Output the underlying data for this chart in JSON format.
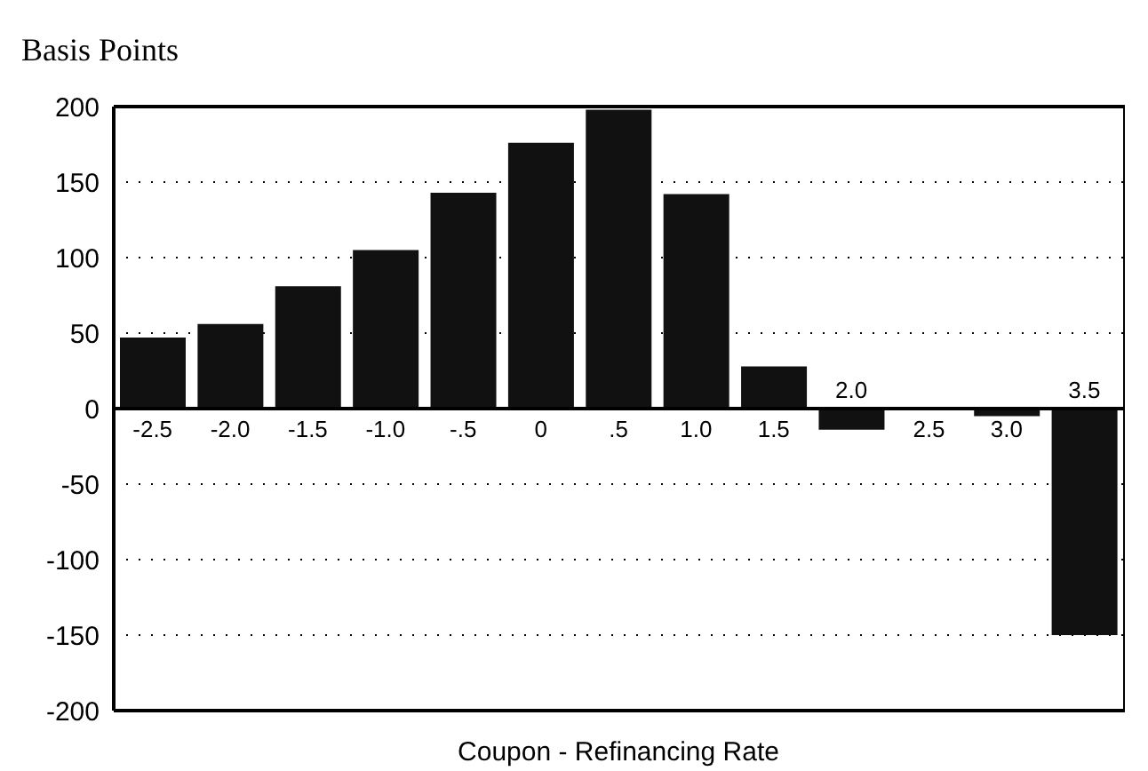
{
  "chart_data": {
    "type": "bar",
    "ylabel": "Basis Points",
    "xlabel": "Coupon - Refinancing Rate",
    "categories": [
      "-2.5",
      "-2.0",
      "-1.5",
      "-1.0",
      "-.5",
      "0",
      ".5",
      "1.0",
      "1.5",
      "2.0",
      "2.5",
      "3.0",
      "3.5"
    ],
    "values": [
      47,
      56,
      81,
      105,
      143,
      176,
      198,
      142,
      28,
      -14,
      0,
      -5,
      -150
    ],
    "color": "#111111",
    "ylim": [
      -200,
      200
    ],
    "yticks": [
      -200,
      -150,
      -100,
      -50,
      0,
      50,
      100,
      150,
      200
    ],
    "grid": "y",
    "legend": false
  }
}
